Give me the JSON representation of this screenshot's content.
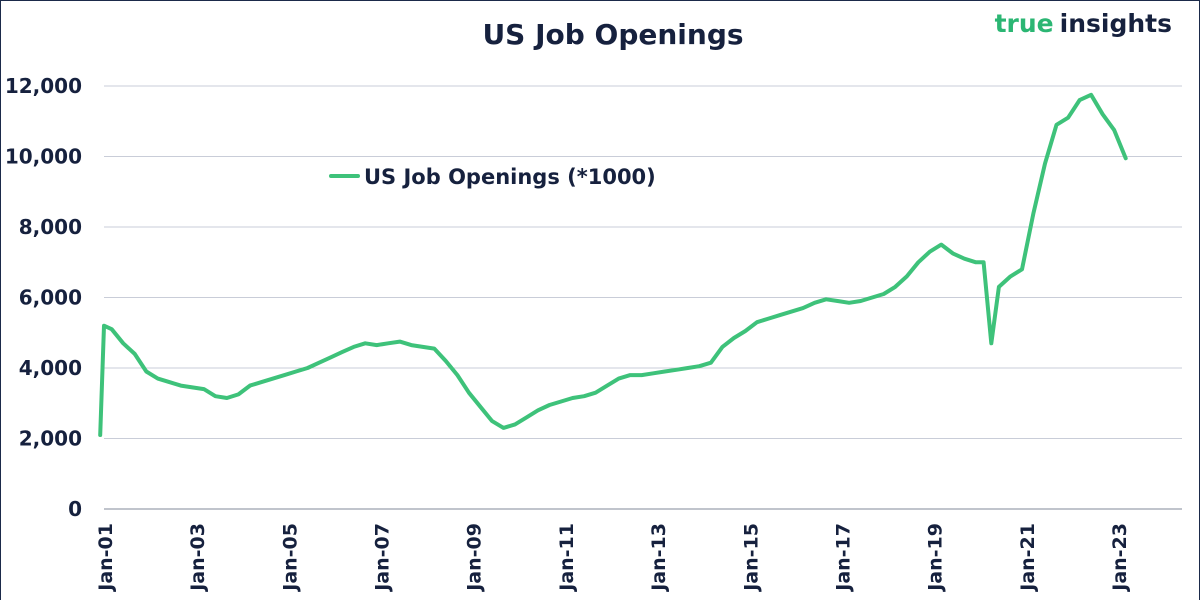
{
  "chart_data": {
    "type": "line",
    "title": "US Job Openings",
    "xlabel": "",
    "ylabel": "",
    "ylim": [
      0,
      12000
    ],
    "yticks": [
      0,
      2000,
      4000,
      6000,
      8000,
      10000,
      12000
    ],
    "ytick_labels": [
      "0",
      "2,000",
      "4,000",
      "6,000",
      "8,000",
      "10,000",
      "12,000"
    ],
    "xticks": [
      "Jan-01",
      "Jan-03",
      "Jan-05",
      "Jan-07",
      "Jan-09",
      "Jan-11",
      "Jan-13",
      "Jan-15",
      "Jan-17",
      "Jan-19",
      "Jan-21",
      "Jan-23"
    ],
    "grid": true,
    "legend_position": "upper-left-inside",
    "series": [
      {
        "name": "US Job Openings (*1000)",
        "color": "#3ec27a",
        "x": [
          "2000-12",
          "2001-01",
          "2001-03",
          "2001-06",
          "2001-09",
          "2001-12",
          "2002-03",
          "2002-06",
          "2002-09",
          "2002-12",
          "2003-03",
          "2003-06",
          "2003-09",
          "2003-12",
          "2004-03",
          "2004-06",
          "2004-09",
          "2004-12",
          "2005-03",
          "2005-06",
          "2005-09",
          "2005-12",
          "2006-03",
          "2006-06",
          "2006-09",
          "2006-12",
          "2007-03",
          "2007-06",
          "2007-09",
          "2007-12",
          "2008-03",
          "2008-06",
          "2008-09",
          "2008-12",
          "2009-03",
          "2009-06",
          "2009-09",
          "2009-12",
          "2010-03",
          "2010-06",
          "2010-09",
          "2010-12",
          "2011-03",
          "2011-06",
          "2011-09",
          "2011-12",
          "2012-03",
          "2012-06",
          "2012-09",
          "2012-12",
          "2013-03",
          "2013-06",
          "2013-09",
          "2013-12",
          "2014-03",
          "2014-06",
          "2014-09",
          "2014-12",
          "2015-03",
          "2015-06",
          "2015-09",
          "2015-12",
          "2016-03",
          "2016-06",
          "2016-09",
          "2016-12",
          "2017-03",
          "2017-06",
          "2017-09",
          "2017-12",
          "2018-03",
          "2018-06",
          "2018-09",
          "2018-12",
          "2019-03",
          "2019-06",
          "2019-09",
          "2019-12",
          "2020-02",
          "2020-04",
          "2020-06",
          "2020-09",
          "2020-12",
          "2021-03",
          "2021-06",
          "2021-09",
          "2021-12",
          "2022-03",
          "2022-06",
          "2022-09",
          "2022-12",
          "2023-03"
        ],
        "values": [
          2100,
          5200,
          5100,
          4700,
          4400,
          3900,
          3700,
          3600,
          3500,
          3450,
          3400,
          3200,
          3150,
          3250,
          3500,
          3600,
          3700,
          3800,
          3900,
          4000,
          4150,
          4300,
          4450,
          4600,
          4700,
          4650,
          4700,
          4750,
          4650,
          4600,
          4550,
          4200,
          3800,
          3300,
          2900,
          2500,
          2300,
          2400,
          2600,
          2800,
          2950,
          3050,
          3150,
          3200,
          3300,
          3500,
          3700,
          3800,
          3800,
          3850,
          3900,
          3950,
          4000,
          4050,
          4150,
          4600,
          4850,
          5050,
          5300,
          5400,
          5500,
          5600,
          5700,
          5850,
          5950,
          5900,
          5850,
          5900,
          6000,
          6100,
          6300,
          6600,
          7000,
          7300,
          7500,
          7250,
          7100,
          7000,
          7000,
          4700,
          6300,
          6600,
          6800,
          8400,
          9800,
          10900,
          11100,
          11600,
          11750,
          11200,
          10750,
          9950
        ]
      }
    ]
  },
  "brand": {
    "part1": "true",
    "part2": "insights"
  }
}
